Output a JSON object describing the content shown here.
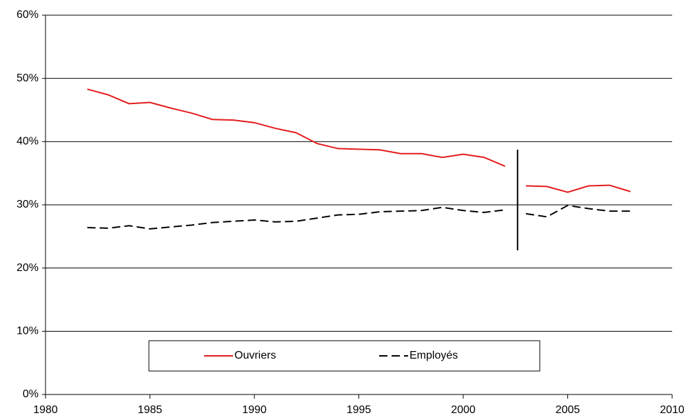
{
  "chart_data": {
    "type": "line",
    "x": [
      1982,
      1983,
      1984,
      1985,
      1986,
      1987,
      1988,
      1989,
      1990,
      1991,
      1992,
      1993,
      1994,
      1995,
      1996,
      1997,
      1998,
      1999,
      2000,
      2001,
      2002,
      null,
      2003,
      2004,
      2005,
      2006,
      2007,
      2008
    ],
    "series": [
      {
        "name": "Ouvriers",
        "color": "#e31a1c",
        "dash": false,
        "values": [
          48.3,
          47.4,
          46.0,
          46.2,
          45.3,
          44.5,
          43.5,
          43.4,
          43.0,
          42.1,
          41.4,
          39.7,
          38.9,
          38.8,
          38.7,
          38.1,
          38.1,
          37.5,
          38.0,
          37.5,
          36.1,
          null,
          33.0,
          32.9,
          32.0,
          33.0,
          33.1,
          32.1
        ]
      },
      {
        "name": "Employés",
        "color": "#000000",
        "dash": true,
        "values": [
          26.4,
          26.3,
          26.7,
          26.2,
          26.5,
          26.8,
          27.2,
          27.4,
          27.6,
          27.3,
          27.4,
          27.9,
          28.4,
          28.5,
          28.9,
          29.0,
          29.1,
          29.6,
          29.1,
          28.8,
          29.2,
          null,
          28.6,
          28.1,
          29.9,
          29.4,
          29.0,
          29.0
        ]
      }
    ],
    "xlim": [
      1980,
      2010
    ],
    "xticks": [
      1980,
      1985,
      1990,
      1995,
      2000,
      2005,
      2010
    ],
    "ylim": [
      0,
      60
    ],
    "yticks": [
      {
        "value": 0,
        "label": "0%"
      },
      {
        "value": 10,
        "label": "10%"
      },
      {
        "value": 20,
        "label": "20%"
      },
      {
        "value": 30,
        "label": "30%"
      },
      {
        "value": 40,
        "label": "40%"
      },
      {
        "value": 50,
        "label": "50%"
      },
      {
        "value": 60,
        "label": "60%"
      }
    ],
    "grid": true,
    "legend": "bottom"
  }
}
